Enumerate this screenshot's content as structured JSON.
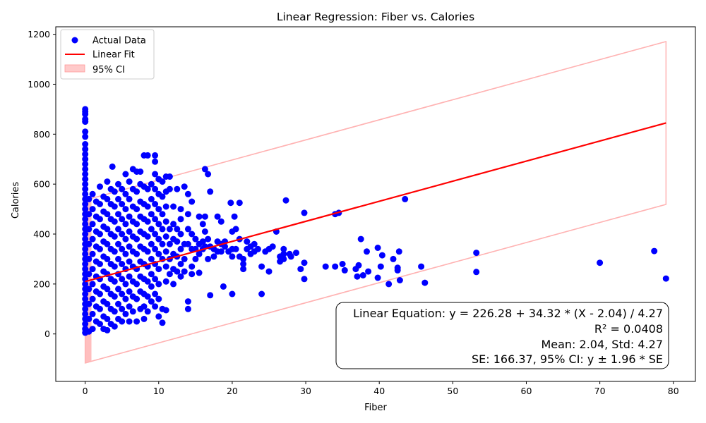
{
  "chart_data": {
    "type": "scatter",
    "title": "Linear Regression: Fiber vs. Calories",
    "xlabel": "Fiber",
    "ylabel": "Calories",
    "xlim": [
      -4,
      83
    ],
    "ylim": [
      -190,
      1230
    ],
    "x_ticks": [
      0,
      10,
      20,
      30,
      40,
      50,
      60,
      70,
      80
    ],
    "y_ticks": [
      0,
      200,
      400,
      600,
      800,
      1000,
      1200
    ],
    "grid": false,
    "legend_position": "upper-left",
    "legend": {
      "scatter": "Actual Data",
      "line": "Linear Fit",
      "ci": "95% CI"
    },
    "colors": {
      "scatter": "#0000ff",
      "line": "#ff0000",
      "ci": "#ffb3b3"
    },
    "fit": {
      "intercept": 226.28,
      "slope": 34.32,
      "mean": 2.04,
      "std": 4.27,
      "r2": 0.0408,
      "se": 166.37,
      "z": 1.96,
      "x_range": [
        0,
        79
      ]
    },
    "annotation": {
      "equation": "Linear Equation: y = 226.28 + 34.32 * (X - 2.04) / 4.27",
      "r2": "R² = 0.0408",
      "stats": "Mean: 2.04, Std: 4.27",
      "se": "SE: 166.37, 95% CI: y ± 1.96 * SE"
    },
    "points": [
      [
        0,
        900
      ],
      [
        0,
        890
      ],
      [
        0,
        880
      ],
      [
        0,
        860
      ],
      [
        0,
        850
      ],
      [
        0,
        810
      ],
      [
        0,
        790
      ],
      [
        0,
        760
      ],
      [
        0,
        740
      ],
      [
        0,
        720
      ],
      [
        0,
        700
      ],
      [
        0,
        680
      ],
      [
        0,
        660
      ],
      [
        0,
        640
      ],
      [
        0,
        620
      ],
      [
        0,
        600
      ],
      [
        0,
        580
      ],
      [
        0,
        560
      ],
      [
        0,
        540
      ],
      [
        0,
        520
      ],
      [
        0,
        500
      ],
      [
        0,
        480
      ],
      [
        0,
        460
      ],
      [
        0,
        440
      ],
      [
        0,
        420
      ],
      [
        0,
        400
      ],
      [
        0,
        380
      ],
      [
        0,
        360
      ],
      [
        0,
        340
      ],
      [
        0,
        320
      ],
      [
        0,
        300
      ],
      [
        0,
        280
      ],
      [
        0,
        260
      ],
      [
        0,
        240
      ],
      [
        0,
        220
      ],
      [
        0,
        200
      ],
      [
        0,
        180
      ],
      [
        0,
        160
      ],
      [
        0,
        140
      ],
      [
        0,
        120
      ],
      [
        0,
        100
      ],
      [
        0,
        80
      ],
      [
        0,
        60
      ],
      [
        0,
        40
      ],
      [
        0,
        20
      ],
      [
        0,
        5
      ],
      [
        0.5,
        540
      ],
      [
        0.5,
        480
      ],
      [
        0.5,
        420
      ],
      [
        0.5,
        360
      ],
      [
        0.5,
        300
      ],
      [
        0.5,
        240
      ],
      [
        0.5,
        180
      ],
      [
        0.5,
        120
      ],
      [
        0.5,
        60
      ],
      [
        0.5,
        10
      ],
      [
        1,
        560
      ],
      [
        1,
        500
      ],
      [
        1,
        440
      ],
      [
        1,
        380
      ],
      [
        1,
        320
      ],
      [
        1,
        260
      ],
      [
        1,
        200
      ],
      [
        1,
        140
      ],
      [
        1,
        80
      ],
      [
        1,
        20
      ],
      [
        1.5,
        530
      ],
      [
        1.5,
        470
      ],
      [
        1.5,
        410
      ],
      [
        1.5,
        350
      ],
      [
        1.5,
        290
      ],
      [
        1.5,
        230
      ],
      [
        1.5,
        170
      ],
      [
        1.5,
        110
      ],
      [
        1.5,
        50
      ],
      [
        2,
        590
      ],
      [
        2,
        520
      ],
      [
        2,
        460
      ],
      [
        2,
        400
      ],
      [
        2,
        340
      ],
      [
        2,
        280
      ],
      [
        2,
        220
      ],
      [
        2,
        160
      ],
      [
        2,
        100
      ],
      [
        2,
        40
      ],
      [
        2.5,
        550
      ],
      [
        2.5,
        490
      ],
      [
        2.5,
        430
      ],
      [
        2.5,
        370
      ],
      [
        2.5,
        310
      ],
      [
        2.5,
        250
      ],
      [
        2.5,
        190
      ],
      [
        2.5,
        130
      ],
      [
        2.5,
        70
      ],
      [
        2.5,
        20
      ],
      [
        3,
        610
      ],
      [
        3,
        540
      ],
      [
        3,
        480
      ],
      [
        3,
        420
      ],
      [
        3,
        360
      ],
      [
        3,
        300
      ],
      [
        3,
        240
      ],
      [
        3,
        180
      ],
      [
        3,
        120
      ],
      [
        3,
        60
      ],
      [
        3,
        15
      ],
      [
        3.5,
        580
      ],
      [
        3.5,
        520
      ],
      [
        3.5,
        460
      ],
      [
        3.5,
        400
      ],
      [
        3.5,
        340
      ],
      [
        3.5,
        280
      ],
      [
        3.5,
        220
      ],
      [
        3.5,
        160
      ],
      [
        3.5,
        100
      ],
      [
        3.5,
        40
      ],
      [
        3.7,
        670
      ],
      [
        4,
        570
      ],
      [
        4,
        510
      ],
      [
        4,
        450
      ],
      [
        4,
        390
      ],
      [
        4,
        330
      ],
      [
        4,
        270
      ],
      [
        4,
        210
      ],
      [
        4,
        150
      ],
      [
        4,
        90
      ],
      [
        4,
        30
      ],
      [
        4.5,
        600
      ],
      [
        4.5,
        540
      ],
      [
        4.5,
        480
      ],
      [
        4.5,
        420
      ],
      [
        4.5,
        360
      ],
      [
        4.5,
        300
      ],
      [
        4.5,
        240
      ],
      [
        4.5,
        180
      ],
      [
        4.5,
        120
      ],
      [
        4.5,
        60
      ],
      [
        5,
        580
      ],
      [
        5,
        520
      ],
      [
        5,
        460
      ],
      [
        5,
        400
      ],
      [
        5,
        340
      ],
      [
        5,
        280
      ],
      [
        5,
        220
      ],
      [
        5,
        160
      ],
      [
        5,
        100
      ],
      [
        5,
        50
      ],
      [
        5.5,
        640
      ],
      [
        5.5,
        560
      ],
      [
        5.5,
        500
      ],
      [
        5.5,
        440
      ],
      [
        5.5,
        380
      ],
      [
        5.5,
        320
      ],
      [
        5.5,
        260
      ],
      [
        5.5,
        200
      ],
      [
        5.5,
        140
      ],
      [
        5.5,
        80
      ],
      [
        6,
        610
      ],
      [
        6,
        540
      ],
      [
        6,
        470
      ],
      [
        6,
        410
      ],
      [
        6,
        350
      ],
      [
        6,
        290
      ],
      [
        6,
        230
      ],
      [
        6,
        170
      ],
      [
        6,
        110
      ],
      [
        6,
        50
      ],
      [
        6.5,
        660
      ],
      [
        6.5,
        580
      ],
      [
        6.5,
        510
      ],
      [
        6.5,
        450
      ],
      [
        6.5,
        390
      ],
      [
        6.5,
        330
      ],
      [
        6.5,
        270
      ],
      [
        6.5,
        210
      ],
      [
        6.5,
        150
      ],
      [
        6.5,
        90
      ],
      [
        7,
        650
      ],
      [
        7,
        570
      ],
      [
        7,
        500
      ],
      [
        7,
        440
      ],
      [
        7,
        380
      ],
      [
        7,
        320
      ],
      [
        7,
        260
      ],
      [
        7,
        200
      ],
      [
        7,
        140
      ],
      [
        7,
        50
      ],
      [
        7.5,
        650
      ],
      [
        7.5,
        600
      ],
      [
        7.5,
        530
      ],
      [
        7.5,
        470
      ],
      [
        7.5,
        410
      ],
      [
        7.5,
        350
      ],
      [
        7.5,
        290
      ],
      [
        7.5,
        230
      ],
      [
        7.5,
        170
      ],
      [
        7.5,
        100
      ],
      [
        8,
        715
      ],
      [
        8,
        590
      ],
      [
        8,
        520
      ],
      [
        8,
        460
      ],
      [
        8,
        400
      ],
      [
        8,
        340
      ],
      [
        8,
        280
      ],
      [
        8,
        220
      ],
      [
        8,
        160
      ],
      [
        8,
        110
      ],
      [
        8,
        60
      ],
      [
        8.5,
        715
      ],
      [
        8.5,
        580
      ],
      [
        8.5,
        510
      ],
      [
        8.5,
        450
      ],
      [
        8.5,
        390
      ],
      [
        8.5,
        330
      ],
      [
        8.5,
        270
      ],
      [
        8.5,
        210
      ],
      [
        8.5,
        150
      ],
      [
        8.5,
        90
      ],
      [
        9,
        600
      ],
      [
        9,
        540
      ],
      [
        9,
        480
      ],
      [
        9,
        420
      ],
      [
        9,
        360
      ],
      [
        9,
        300
      ],
      [
        9,
        240
      ],
      [
        9,
        190
      ],
      [
        9,
        130
      ],
      [
        9.5,
        715
      ],
      [
        9.5,
        690
      ],
      [
        9.5,
        640
      ],
      [
        9.5,
        580
      ],
      [
        9.5,
        520
      ],
      [
        9.5,
        460
      ],
      [
        9.5,
        400
      ],
      [
        9.5,
        340
      ],
      [
        9.5,
        280
      ],
      [
        9.5,
        220
      ],
      [
        9.5,
        160
      ],
      [
        9.5,
        110
      ],
      [
        10,
        620
      ],
      [
        10,
        560
      ],
      [
        10,
        500
      ],
      [
        10,
        440
      ],
      [
        10,
        380
      ],
      [
        10,
        320
      ],
      [
        10,
        260
      ],
      [
        10,
        200
      ],
      [
        10,
        140
      ],
      [
        10,
        70
      ],
      [
        10.5,
        610
      ],
      [
        10.5,
        550
      ],
      [
        10.5,
        480
      ],
      [
        10.5,
        420
      ],
      [
        10.5,
        360
      ],
      [
        10.5,
        300
      ],
      [
        10.5,
        100
      ],
      [
        10.5,
        45
      ],
      [
        11,
        630
      ],
      [
        11,
        570
      ],
      [
        11,
        510
      ],
      [
        11,
        450
      ],
      [
        11,
        390
      ],
      [
        11,
        330
      ],
      [
        11,
        270
      ],
      [
        11,
        210
      ],
      [
        11,
        95
      ],
      [
        11.5,
        630
      ],
      [
        11.5,
        580
      ],
      [
        11.5,
        420
      ],
      [
        11.5,
        360
      ],
      [
        11.5,
        300
      ],
      [
        11.5,
        240
      ],
      [
        12,
        510
      ],
      [
        12,
        440
      ],
      [
        12,
        380
      ],
      [
        12,
        320
      ],
      [
        12,
        260
      ],
      [
        12,
        200
      ],
      [
        12.5,
        580
      ],
      [
        12.5,
        420
      ],
      [
        12.5,
        370
      ],
      [
        12.5,
        310
      ],
      [
        12.5,
        250
      ],
      [
        13,
        500
      ],
      [
        13,
        460
      ],
      [
        13,
        400
      ],
      [
        13,
        340
      ],
      [
        13,
        280
      ],
      [
        13,
        230
      ],
      [
        13.5,
        590
      ],
      [
        13.5,
        360
      ],
      [
        13.5,
        300
      ],
      [
        13.5,
        250
      ],
      [
        14,
        560
      ],
      [
        14,
        480
      ],
      [
        14,
        420
      ],
      [
        14,
        360
      ],
      [
        14,
        100
      ],
      [
        14,
        130
      ],
      [
        14.5,
        530
      ],
      [
        14.5,
        400
      ],
      [
        14.5,
        340
      ],
      [
        14.5,
        270
      ],
      [
        14.5,
        240
      ],
      [
        15,
        380
      ],
      [
        15,
        340
      ],
      [
        15,
        300
      ],
      [
        15.5,
        470
      ],
      [
        15.5,
        360
      ],
      [
        15.5,
        320
      ],
      [
        15.5,
        245
      ],
      [
        16,
        440
      ],
      [
        16,
        370
      ],
      [
        16,
        340
      ],
      [
        16.3,
        660
      ],
      [
        16.3,
        470
      ],
      [
        16.3,
        410
      ],
      [
        16.3,
        350
      ],
      [
        16.7,
        640
      ],
      [
        16.7,
        380
      ],
      [
        16.7,
        300
      ],
      [
        17,
        570
      ],
      [
        17,
        350
      ],
      [
        17,
        155
      ],
      [
        17.5,
        340
      ],
      [
        17.5,
        310
      ],
      [
        18,
        470
      ],
      [
        18,
        370
      ],
      [
        18,
        330
      ],
      [
        18.5,
        450
      ],
      [
        18.5,
        360
      ],
      [
        18.5,
        330
      ],
      [
        18.8,
        190
      ],
      [
        19,
        350
      ],
      [
        19,
        370
      ],
      [
        19.5,
        330
      ],
      [
        19.8,
        525
      ],
      [
        20,
        410
      ],
      [
        20,
        340
      ],
      [
        20,
        310
      ],
      [
        20,
        160
      ],
      [
        20.3,
        470
      ],
      [
        20.5,
        420
      ],
      [
        20.5,
        340
      ],
      [
        21,
        525
      ],
      [
        21,
        380
      ],
      [
        21,
        310
      ],
      [
        21.5,
        300
      ],
      [
        21.5,
        280
      ],
      [
        21.5,
        260
      ],
      [
        22,
        370
      ],
      [
        22,
        340
      ],
      [
        22.5,
        320
      ],
      [
        22.5,
        350
      ],
      [
        23,
        360
      ],
      [
        23,
        330
      ],
      [
        23.5,
        340
      ],
      [
        24,
        270
      ],
      [
        24,
        160
      ],
      [
        24.5,
        330
      ],
      [
        25,
        340
      ],
      [
        25,
        250
      ],
      [
        25.5,
        350
      ],
      [
        26,
        410
      ],
      [
        26.5,
        310
      ],
      [
        26.5,
        290
      ],
      [
        27,
        340
      ],
      [
        27,
        320
      ],
      [
        27,
        300
      ],
      [
        27.3,
        535
      ],
      [
        27.8,
        320
      ],
      [
        28,
        310
      ],
      [
        28.7,
        325
      ],
      [
        29.3,
        260
      ],
      [
        29.8,
        485
      ],
      [
        29.8,
        285
      ],
      [
        29.8,
        220
      ],
      [
        32.7,
        270
      ],
      [
        34,
        480
      ],
      [
        34,
        270
      ],
      [
        34.5,
        485
      ],
      [
        35,
        280
      ],
      [
        35.3,
        255
      ],
      [
        36.8,
        260
      ],
      [
        37,
        230
      ],
      [
        37.2,
        275
      ],
      [
        37.5,
        380
      ],
      [
        37.8,
        235
      ],
      [
        38.3,
        330
      ],
      [
        38.5,
        250
      ],
      [
        39.8,
        345
      ],
      [
        39.8,
        225
      ],
      [
        40.2,
        270
      ],
      [
        40.4,
        315
      ],
      [
        41.3,
        200
      ],
      [
        41.9,
        300
      ],
      [
        42.5,
        265
      ],
      [
        42.5,
        255
      ],
      [
        42.7,
        330
      ],
      [
        42.8,
        215
      ],
      [
        43.5,
        540
      ],
      [
        45.7,
        270
      ],
      [
        46.2,
        205
      ],
      [
        53.2,
        325
      ],
      [
        53.2,
        248
      ],
      [
        70,
        285
      ],
      [
        77.4,
        332
      ],
      [
        79,
        222
      ]
    ]
  }
}
